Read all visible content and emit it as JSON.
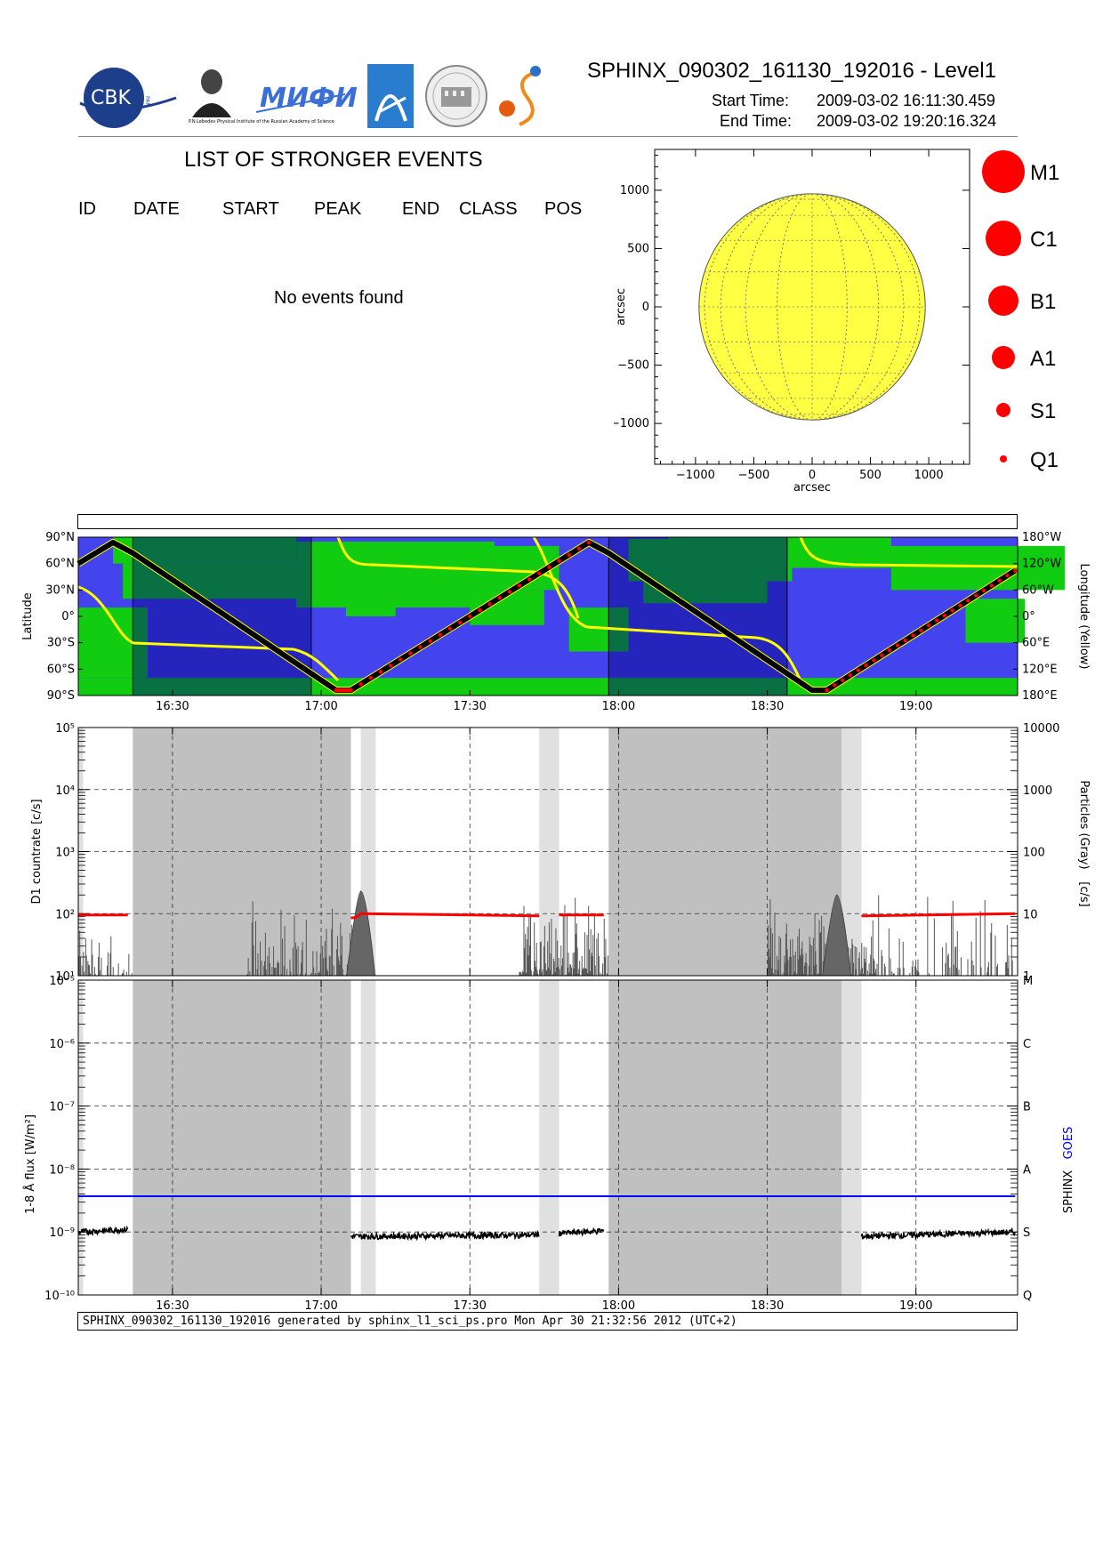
{
  "header": {
    "file_title": "SPHINX_090302_161130_192016 - Level1",
    "start_label": "Start Time:",
    "start_value": "2009-03-02   16:11:30.459",
    "end_label": "End Time:",
    "end_value": "2009-03-02   19:20:16.324",
    "logos": {
      "cbk": "CBK",
      "pan": "PAN",
      "lebedev": "P.N.Lebedev Physical Institute of the Russian Academy of Science",
      "mifi": "МИФИ"
    }
  },
  "events": {
    "title": "LIST OF STRONGER EVENTS",
    "columns": [
      "ID",
      "DATE",
      "START",
      "PEAK",
      "END",
      "CLASS",
      "POS"
    ],
    "empty_message": "No events found"
  },
  "sun_map": {
    "xlabel": "arcsec",
    "ylabel": "arcsec",
    "ticks": [
      "-1000",
      "-500",
      "0",
      "500",
      "1000"
    ],
    "tick_values": [
      -1000,
      -500,
      0,
      500,
      1000
    ],
    "range": [
      -1350,
      1350
    ],
    "radius_arcsec": 970,
    "disk_color": "#ffff44"
  },
  "flare_legend": [
    "M1",
    "C1",
    "B1",
    "A1",
    "S1",
    "Q1"
  ],
  "colors": {
    "ocean": "#4444ee",
    "land": "#11cc11",
    "night": "#000080",
    "track": "#000000",
    "yellow": "#ffff00",
    "red": "#ff0000",
    "eclipse_gray": "#c0c0c0",
    "saa_gray": "#e0e0e0",
    "goes_blue": "#0000ff"
  },
  "chart_data": [
    {
      "type": "map",
      "name": "orbit-map",
      "time_ticks": [
        "16:30",
        "17:00",
        "17:30",
        "18:00",
        "18:30",
        "19:00"
      ],
      "lat_ticks": [
        "90°N",
        "60°N",
        "30°N",
        "0°",
        "30°S",
        "60°S",
        "90°S"
      ],
      "lon_ticks": [
        "180°W",
        "120°W",
        "60°W",
        "0°",
        "60°E",
        "120°E",
        "180°E"
      ],
      "ylabel_left": "Latitude",
      "ylabel_right": "Longitude (Yellow)",
      "night_intervals": [
        [
          "16:22",
          "16:58"
        ],
        [
          "17:58",
          "18:34"
        ]
      ],
      "latitude_track": [
        [
          "16:11",
          60
        ],
        [
          "16:18",
          84
        ],
        [
          "16:22",
          72
        ],
        [
          "17:03",
          -84
        ],
        [
          "17:06",
          -84
        ],
        [
          "17:54",
          84
        ],
        [
          "17:58",
          72
        ],
        [
          "18:39",
          -84
        ],
        [
          "18:42",
          -84
        ],
        [
          "19:20",
          52
        ]
      ]
    },
    {
      "type": "line",
      "name": "d1-countrate",
      "scale": "log",
      "ylim": [
        10,
        100000
      ],
      "yticks_left": [
        "10¹",
        "10²",
        "10³",
        "10⁴",
        "10⁵"
      ],
      "yticks_right": [
        "1",
        "10",
        "100",
        "1000",
        "10000"
      ],
      "ylabel_left": "D1 countrate [c/s]",
      "ylabel_right": "Particles (Gray)",
      "ylabel_right_unit": "[c/s]",
      "time_ticks": [
        "16:30",
        "17:00",
        "17:30",
        "18:00",
        "18:30",
        "19:00"
      ],
      "eclipse_intervals": [
        [
          "16:22",
          "17:06"
        ],
        [
          "17:58",
          "18:45"
        ]
      ],
      "saa_intervals": [
        [
          "16:11",
          "16:12"
        ],
        [
          "17:08",
          "17:11"
        ],
        [
          "17:44",
          "17:48"
        ],
        [
          "18:45",
          "18:49"
        ]
      ],
      "series": [
        {
          "type": "line",
          "data": [
            [
              "16:11",
              95
            ],
            [
              "16:21",
              95
            ]
          ]
        },
        {
          "type": "line",
          "data": [
            [
              "17:06",
              85
            ],
            [
              "17:07",
              87
            ],
            [
              "17:08",
              100
            ],
            [
              "17:44",
              92
            ]
          ]
        },
        {
          "type": "line",
          "data": [
            [
              "17:48",
              95
            ],
            [
              "17:57",
              95
            ]
          ]
        },
        {
          "type": "line",
          "data": [
            [
              "18:49",
              92
            ],
            [
              "19:20",
              100
            ]
          ]
        }
      ]
    },
    {
      "type": "line",
      "name": "goes-flux",
      "scale": "log",
      "ylim": [
        1e-10,
        1e-05
      ],
      "yticks_left": [
        "10⁻¹⁰",
        "10⁻⁹",
        "10⁻⁸",
        "10⁻⁷",
        "10⁻⁶",
        "10⁻⁵"
      ],
      "yticks_right": [
        "Q",
        "S",
        "A",
        "B",
        "C",
        "M"
      ],
      "ylabel_left": "1-8 Å flux [W/m²]",
      "legend_right": [
        "SPHINX",
        "GOES"
      ],
      "time_ticks": [
        "16:30",
        "17:00",
        "17:30",
        "18:00",
        "18:30",
        "19:00"
      ],
      "eclipse_intervals": [
        [
          "16:22",
          "17:06"
        ],
        [
          "17:58",
          "18:45"
        ]
      ],
      "saa_intervals": [
        [
          "16:11",
          "16:12"
        ],
        [
          "17:08",
          "17:11"
        ],
        [
          "17:44",
          "17:48"
        ],
        [
          "18:45",
          "18:49"
        ]
      ],
      "series": [
        {
          "name": "GOES",
          "color": "#0000ff",
          "data": [
            [
              "16:11",
              3.7e-09
            ],
            [
              "19:20",
              3.7e-09
            ]
          ]
        },
        {
          "name": "SPHINX",
          "color": "#000000",
          "data": [
            [
              "16:11",
              1e-09
            ],
            [
              "16:21",
              1.1e-09
            ]
          ]
        },
        {
          "name": "SPHINX",
          "color": "#000000",
          "data": [
            [
              "17:06",
              8.5e-10
            ],
            [
              "17:07",
              9e-10
            ],
            [
              "17:44",
              9e-10
            ]
          ]
        },
        {
          "name": "SPHINX",
          "color": "#000000",
          "data": [
            [
              "17:48",
              9.5e-10
            ],
            [
              "17:57",
              1.05e-09
            ]
          ]
        },
        {
          "name": "SPHINX",
          "color": "#000000",
          "data": [
            [
              "18:49",
              8.5e-10
            ],
            [
              "19:20",
              1e-09
            ]
          ]
        }
      ]
    }
  ],
  "footer": "SPHINX_090302_161130_192016 generated by sphinx_l1_sci_ps.pro Mon Apr 30 21:32:56 2012 (UTC+2)"
}
